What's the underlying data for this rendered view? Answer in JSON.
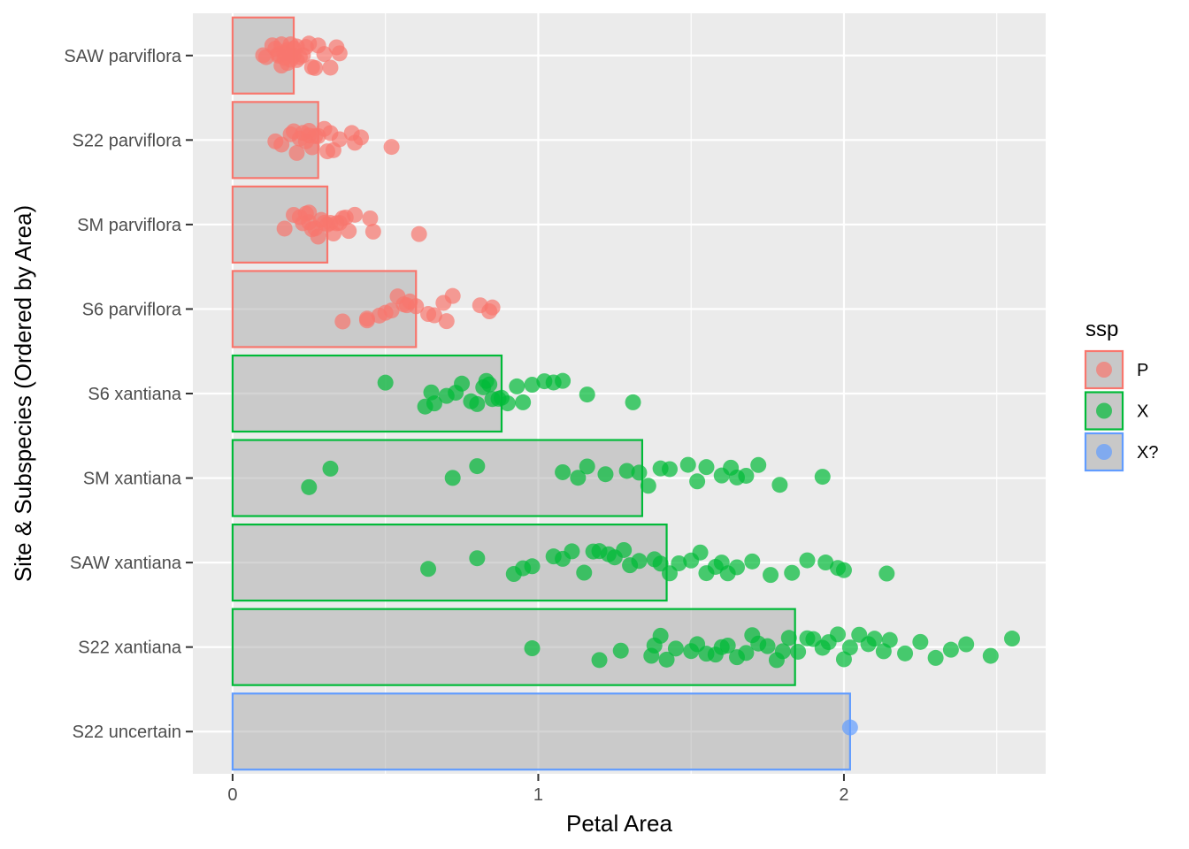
{
  "chart_data": {
    "type": "bar",
    "orientation": "horizontal",
    "xlabel": "Petal Area",
    "ylabel": "Site & Subspecies (Ordered by Area)",
    "xlim": [
      -0.13,
      2.66
    ],
    "x_ticks": [
      0,
      1,
      2
    ],
    "x_tick_labels": [
      "0",
      "1",
      "2"
    ],
    "grid": true,
    "legend": {
      "title": "ssp",
      "placement": "right",
      "entries": [
        {
          "label": "P",
          "color": "#F8766D"
        },
        {
          "label": "X",
          "color": "#00BA38"
        },
        {
          "label": "X?",
          "color": "#619CFF"
        }
      ]
    },
    "categories": [
      {
        "label": "SAW parviflora",
        "ssp": "P",
        "bar_value": 0.2,
        "points": [
          0.1,
          0.11,
          0.13,
          0.14,
          0.15,
          0.15,
          0.16,
          0.16,
          0.17,
          0.17,
          0.18,
          0.18,
          0.19,
          0.19,
          0.2,
          0.2,
          0.21,
          0.21,
          0.22,
          0.23,
          0.24,
          0.25,
          0.26,
          0.27,
          0.28,
          0.3,
          0.32,
          0.34,
          0.35
        ]
      },
      {
        "label": "S22 parviflora",
        "ssp": "P",
        "bar_value": 0.28,
        "points": [
          0.14,
          0.16,
          0.19,
          0.2,
          0.21,
          0.22,
          0.23,
          0.24,
          0.25,
          0.25,
          0.26,
          0.27,
          0.28,
          0.3,
          0.31,
          0.32,
          0.33,
          0.35,
          0.39,
          0.4,
          0.42,
          0.52
        ]
      },
      {
        "label": "SM parviflora",
        "ssp": "P",
        "bar_value": 0.31,
        "points": [
          0.17,
          0.2,
          0.22,
          0.23,
          0.24,
          0.25,
          0.25,
          0.26,
          0.27,
          0.28,
          0.29,
          0.3,
          0.31,
          0.32,
          0.33,
          0.34,
          0.35,
          0.36,
          0.37,
          0.38,
          0.4,
          0.45,
          0.46,
          0.61
        ]
      },
      {
        "label": "S6 parviflora",
        "ssp": "P",
        "bar_value": 0.6,
        "points": [
          0.36,
          0.44,
          0.44,
          0.48,
          0.5,
          0.52,
          0.54,
          0.56,
          0.57,
          0.58,
          0.6,
          0.64,
          0.66,
          0.69,
          0.7,
          0.72,
          0.81,
          0.84,
          0.85
        ]
      },
      {
        "label": "S6 xantiana",
        "ssp": "X",
        "bar_value": 0.88,
        "points": [
          0.5,
          0.63,
          0.65,
          0.66,
          0.7,
          0.73,
          0.75,
          0.78,
          0.8,
          0.82,
          0.83,
          0.84,
          0.85,
          0.87,
          0.88,
          0.9,
          0.93,
          0.95,
          0.98,
          1.02,
          1.05,
          1.08,
          1.16,
          1.31
        ]
      },
      {
        "label": "SM xantiana",
        "ssp": "X",
        "bar_value": 1.34,
        "points": [
          0.25,
          0.32,
          0.72,
          0.8,
          1.08,
          1.13,
          1.16,
          1.22,
          1.29,
          1.33,
          1.36,
          1.4,
          1.43,
          1.49,
          1.52,
          1.55,
          1.6,
          1.63,
          1.65,
          1.68,
          1.72,
          1.79,
          1.93
        ]
      },
      {
        "label": "SAW xantiana",
        "ssp": "X",
        "bar_value": 1.42,
        "points": [
          0.64,
          0.8,
          0.92,
          0.95,
          0.98,
          1.05,
          1.08,
          1.11,
          1.15,
          1.18,
          1.2,
          1.23,
          1.25,
          1.28,
          1.3,
          1.33,
          1.38,
          1.4,
          1.43,
          1.46,
          1.5,
          1.53,
          1.55,
          1.58,
          1.6,
          1.62,
          1.65,
          1.7,
          1.76,
          1.83,
          1.88,
          1.94,
          1.98,
          2.0,
          2.14
        ]
      },
      {
        "label": "S22 xantiana",
        "ssp": "X",
        "bar_value": 1.84,
        "points": [
          0.98,
          1.2,
          1.27,
          1.37,
          1.38,
          1.4,
          1.42,
          1.45,
          1.5,
          1.52,
          1.55,
          1.58,
          1.6,
          1.62,
          1.65,
          1.68,
          1.7,
          1.72,
          1.75,
          1.78,
          1.8,
          1.82,
          1.85,
          1.88,
          1.9,
          1.93,
          1.95,
          1.98,
          2.0,
          2.02,
          2.05,
          2.08,
          2.1,
          2.13,
          2.15,
          2.2,
          2.25,
          2.3,
          2.35,
          2.4,
          2.48,
          2.55
        ]
      },
      {
        "label": "S22 uncertain",
        "ssp": "X?",
        "bar_value": 2.02,
        "points": [
          2.02
        ]
      }
    ]
  }
}
